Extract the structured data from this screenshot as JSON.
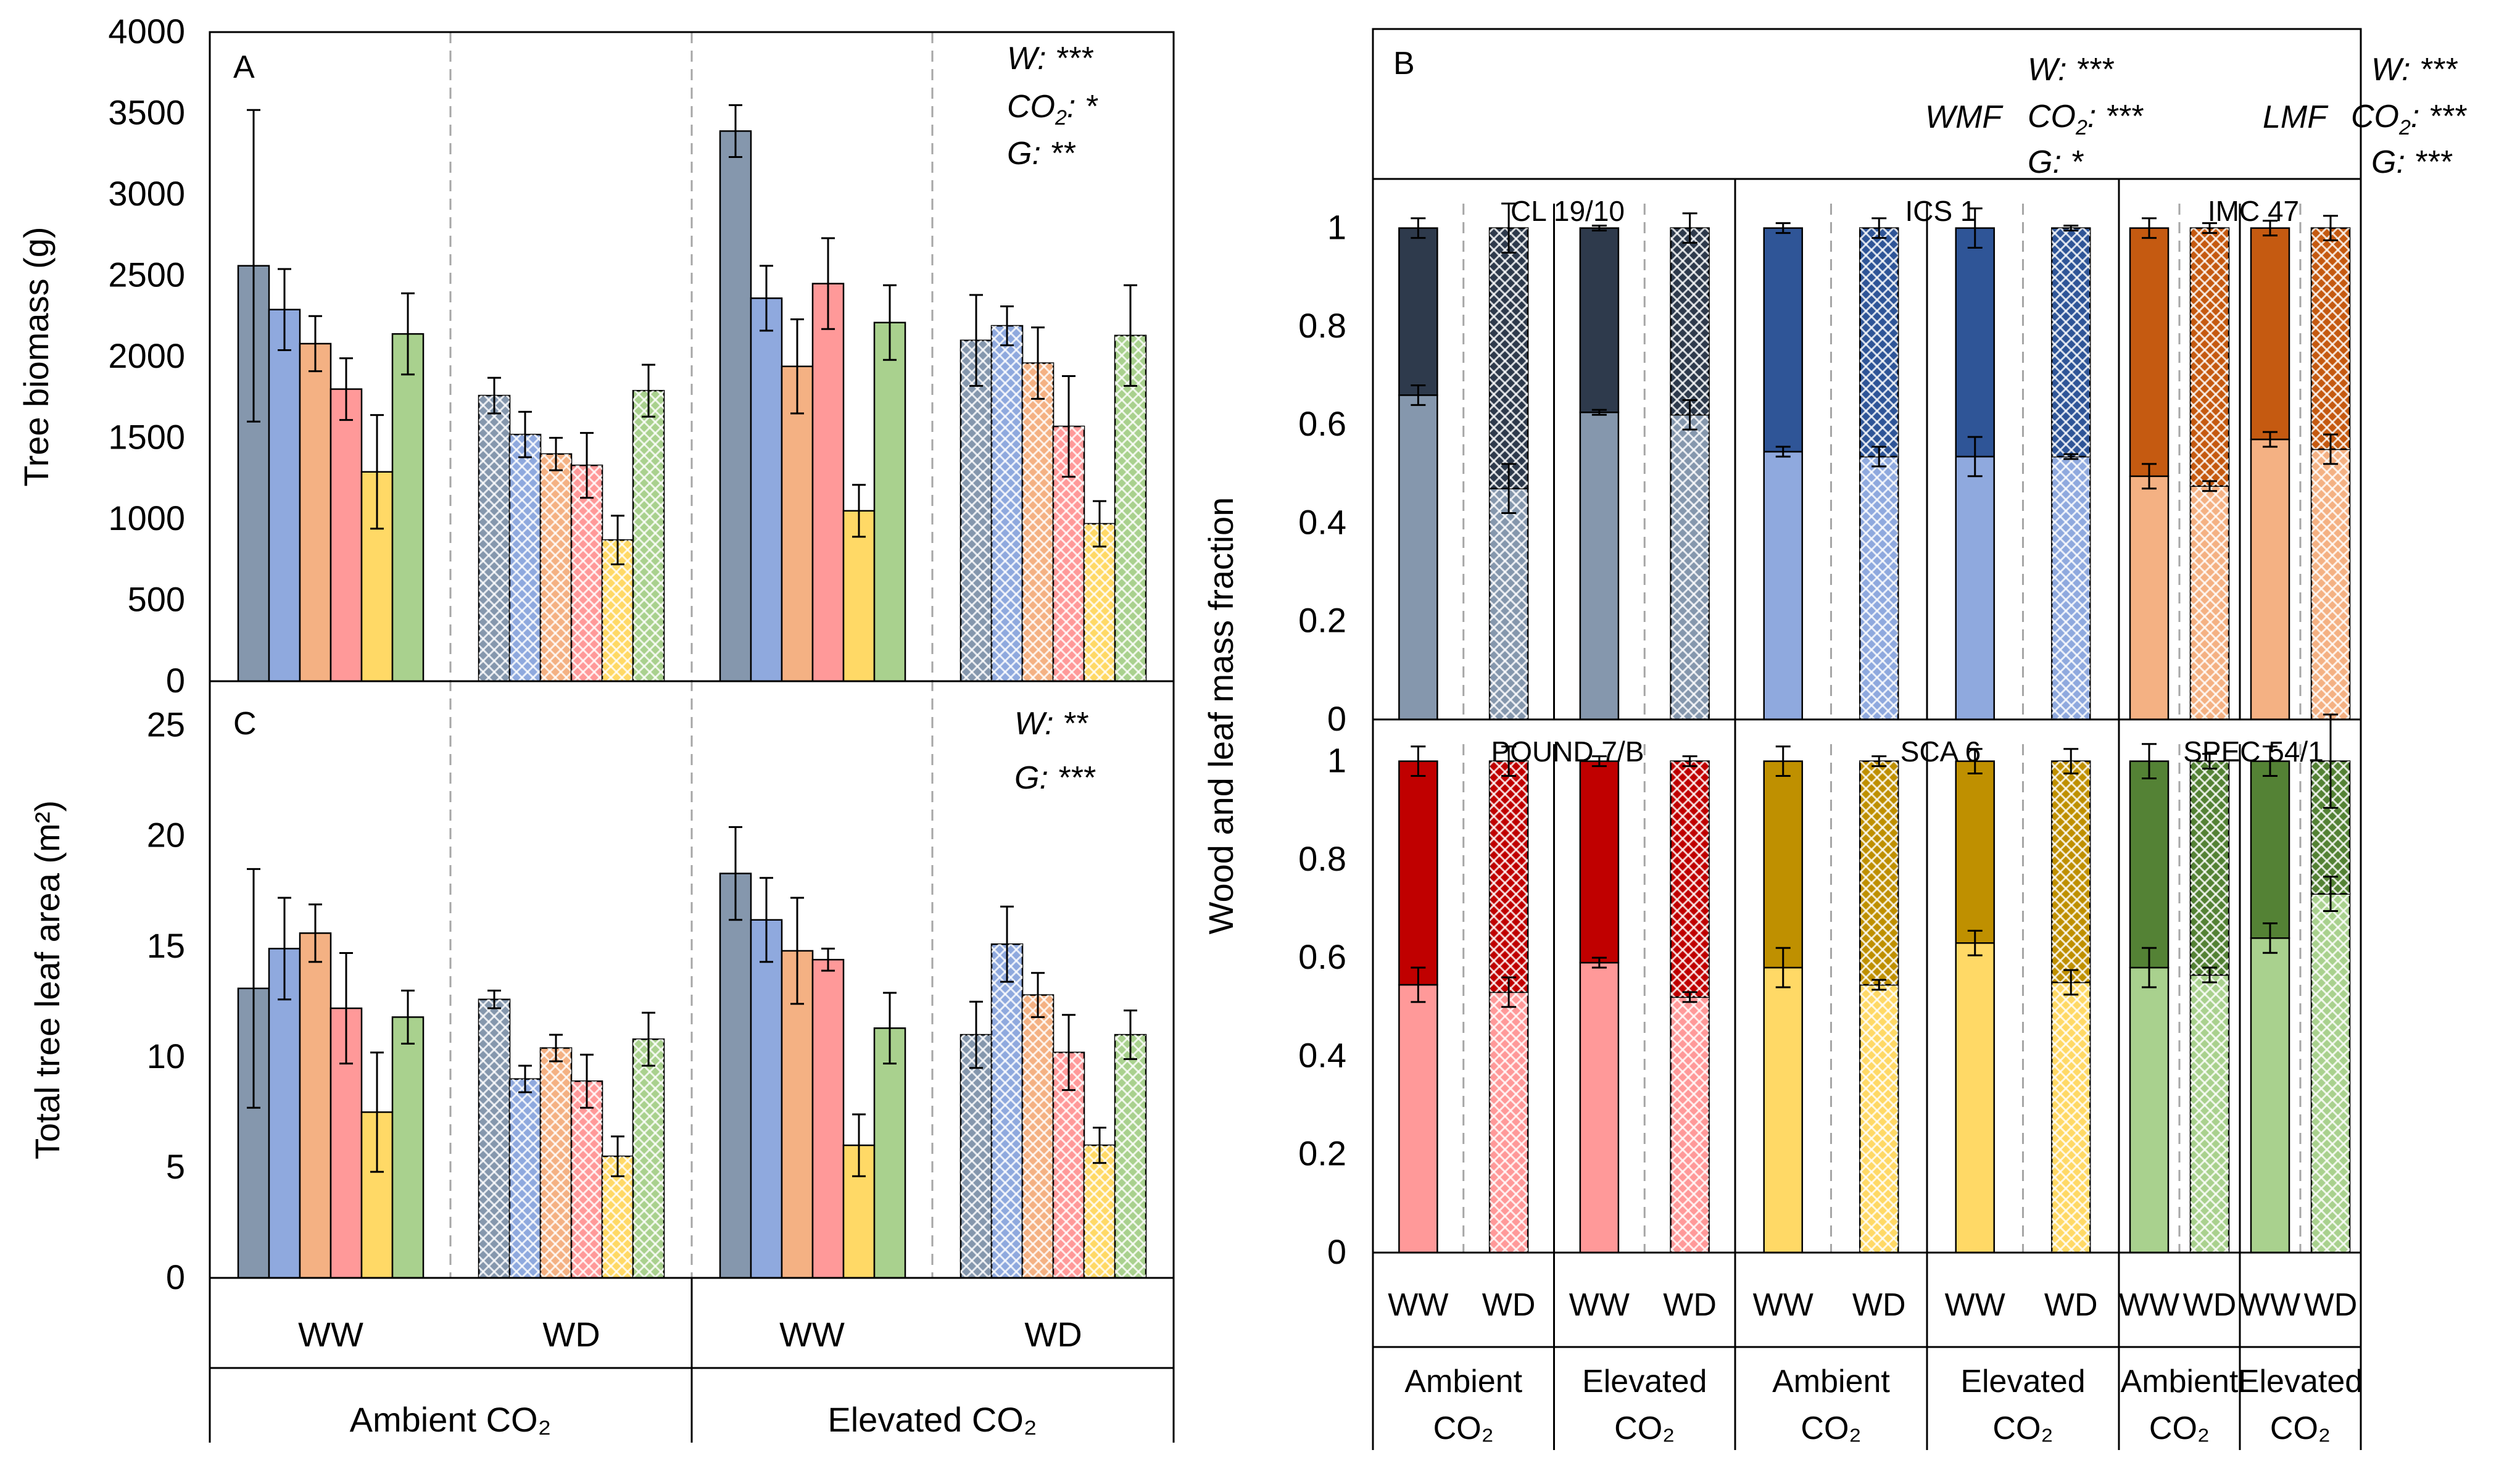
{
  "colors": {
    "CL 19/10": [
      "#8597ad",
      "#2e3a4c"
    ],
    "ICS 1": [
      "#8fa9de",
      "#2f5597"
    ],
    "IMC 47": [
      "#f4b183",
      "#c55a11"
    ],
    "POUND 7/B": [
      "#ff9999",
      "#c00000"
    ],
    "SCA 6": [
      "#ffd966",
      "#bf9000"
    ],
    "SPEC 54/1": [
      "#a9d18e",
      "#548235"
    ]
  },
  "chart_data": [
    {
      "panel": "A",
      "type": "bar",
      "ylabel": "Tree biomass (g)",
      "ylim": [
        0,
        4000
      ],
      "yticks": [
        "0",
        "500",
        "1000",
        "1500",
        "2000",
        "2500",
        "3000",
        "3500",
        "4000"
      ],
      "groups": [
        "Ambient CO₂ WW",
        "Ambient CO₂ WD",
        "Elevated CO₂ WW",
        "Elevated CO₂ WD"
      ],
      "series": [
        {
          "name": "CL 19/10",
          "values": [
            2560,
            1760,
            3390,
            2100
          ],
          "errors": [
            960,
            110,
            160,
            280
          ]
        },
        {
          "name": "ICS 1",
          "values": [
            2290,
            1520,
            2360,
            2190
          ],
          "errors": [
            250,
            140,
            200,
            120
          ]
        },
        {
          "name": "IMC 47",
          "values": [
            2080,
            1400,
            1940,
            1960
          ],
          "errors": [
            170,
            100,
            290,
            220
          ]
        },
        {
          "name": "POUND 7/B",
          "values": [
            1800,
            1330,
            2450,
            1570
          ],
          "errors": [
            190,
            200,
            280,
            310
          ]
        },
        {
          "name": "SCA 6",
          "values": [
            1290,
            870,
            1050,
            970
          ],
          "errors": [
            350,
            150,
            160,
            140
          ]
        },
        {
          "name": "SPEC 54/1",
          "values": [
            2140,
            1790,
            2210,
            2130
          ],
          "errors": [
            250,
            160,
            230,
            310
          ]
        }
      ],
      "stats": [
        "W: ***",
        "CO₂: *",
        "G: **"
      ]
    },
    {
      "panel": "C",
      "type": "bar",
      "ylabel": "Total tree leaf area (m²)",
      "ylim": [
        0,
        27
      ],
      "yticks": [
        "0",
        "5",
        "10",
        "15",
        "20",
        "25"
      ],
      "groups": [
        "Ambient CO₂ WW",
        "Ambient CO₂ WD",
        "Elevated CO₂ WW",
        "Elevated CO₂ WD"
      ],
      "series": [
        {
          "name": "CL 19/10",
          "values": [
            13.1,
            12.6,
            18.3,
            11.0
          ],
          "errors": [
            5.4,
            0.4,
            2.1,
            1.5
          ]
        },
        {
          "name": "ICS 1",
          "values": [
            14.9,
            9.0,
            16.2,
            15.1
          ],
          "errors": [
            2.3,
            0.6,
            1.9,
            1.7
          ]
        },
        {
          "name": "IMC 47",
          "values": [
            15.6,
            10.4,
            14.8,
            12.8
          ],
          "errors": [
            1.3,
            0.6,
            2.4,
            1.0
          ]
        },
        {
          "name": "POUND 7/B",
          "values": [
            12.2,
            8.9,
            14.4,
            10.2
          ],
          "errors": [
            2.5,
            1.2,
            0.5,
            1.7
          ]
        },
        {
          "name": "SCA 6",
          "values": [
            7.5,
            5.5,
            6.0,
            6.0
          ],
          "errors": [
            2.7,
            0.9,
            1.4,
            0.8
          ]
        },
        {
          "name": "SPEC 54/1",
          "values": [
            11.8,
            10.8,
            11.3,
            11.0
          ],
          "errors": [
            1.2,
            1.2,
            1.6,
            1.1
          ]
        }
      ],
      "stats": [
        "W: **",
        "G: ***"
      ]
    },
    {
      "panel": "B",
      "type": "stacked-bar",
      "ylabel": "Wood and leaf mass fraction",
      "ylim": [
        0,
        1.1
      ],
      "yticks": [
        "0",
        "0.2",
        "0.4",
        "0.6",
        "0.8",
        "1"
      ],
      "bar_order": [
        "Ambient CO₂ WW",
        "Ambient CO₂ WD",
        "Elevated CO₂ WW",
        "Elevated CO₂ WD"
      ],
      "genotypes": [
        {
          "name": "CL 19/10",
          "wood": [
            0.66,
            0.47,
            0.625,
            0.62
          ],
          "wood_err": [
            0.02,
            0.05,
            0.005,
            0.03
          ],
          "total_err": [
            0.02,
            0.05,
            0.005,
            0.03
          ]
        },
        {
          "name": "ICS 1",
          "wood": [
            0.545,
            0.535,
            0.535,
            0.535
          ],
          "wood_err": [
            0.01,
            0.02,
            0.04,
            0.005
          ],
          "total_err": [
            0.01,
            0.02,
            0.04,
            0.005
          ]
        },
        {
          "name": "IMC 47",
          "wood": [
            0.495,
            0.475,
            0.57,
            0.55
          ],
          "wood_err": [
            0.025,
            0.01,
            0.015,
            0.03
          ],
          "total_err": [
            0.02,
            0.01,
            0.015,
            0.025
          ]
        },
        {
          "name": "POUND 7/B",
          "wood": [
            0.545,
            0.53,
            0.59,
            0.52
          ],
          "wood_err": [
            0.035,
            0.03,
            0.01,
            0.01
          ],
          "total_err": [
            0.03,
            0.03,
            0.01,
            0.01
          ]
        },
        {
          "name": "SCA 6",
          "wood": [
            0.58,
            0.545,
            0.63,
            0.55
          ],
          "wood_err": [
            0.04,
            0.01,
            0.025,
            0.025
          ],
          "total_err": [
            0.03,
            0.01,
            0.025,
            0.025
          ]
        },
        {
          "name": "SPEC 54/1",
          "wood": [
            0.58,
            0.565,
            0.64,
            0.73
          ],
          "wood_err": [
            0.04,
            0.015,
            0.03,
            0.035
          ],
          "total_err": [
            0.035,
            0.015,
            0.03,
            0.095
          ]
        }
      ],
      "wmf_label": "WMF",
      "wmf_stats": [
        "W: ***",
        "CO₂: ***",
        "G: *"
      ],
      "lmf_label": "LMF",
      "lmf_stats": [
        "W: ***",
        "CO₂: ***",
        "G: ***"
      ]
    }
  ],
  "panels": {
    "a_label": "A",
    "b_label": "B",
    "c_label": "C",
    "a_stat1": "W: ***",
    "a_stat2_main": "CO",
    "a_stat2_sub": "2",
    "a_stat2_tail": ": *",
    "a_stat3": "G: **",
    "c_stat1": "W: **",
    "c_stat2": "G: ***",
    "wmf_label": "WMF",
    "lmf_label": "LMF",
    "b_stat1": "W: ***",
    "b_stat2_main": "CO",
    "b_stat2_sub": "2",
    "b_stat2_wmf_tail": ": ***",
    "b_stat2_lmf_tail": ": ***",
    "b_stat3_wmf": "G: *",
    "b_stat3_lmf": "G: ***"
  },
  "axis": {
    "a_ylabel": "Tree biomass (g)",
    "c_ylabel": "Total tree leaf area (m²)",
    "b_ylabel": "Wood and leaf mass fraction"
  },
  "xaxis_left": {
    "ww": "WW",
    "wd": "WD",
    "ambient": "Ambient CO₂",
    "elevated": "Elevated CO₂"
  },
  "xaxis_right": {
    "ww": "WW",
    "wd": "WD",
    "ambient": "Ambient",
    "elevated": "Elevated",
    "co2": "CO₂"
  }
}
